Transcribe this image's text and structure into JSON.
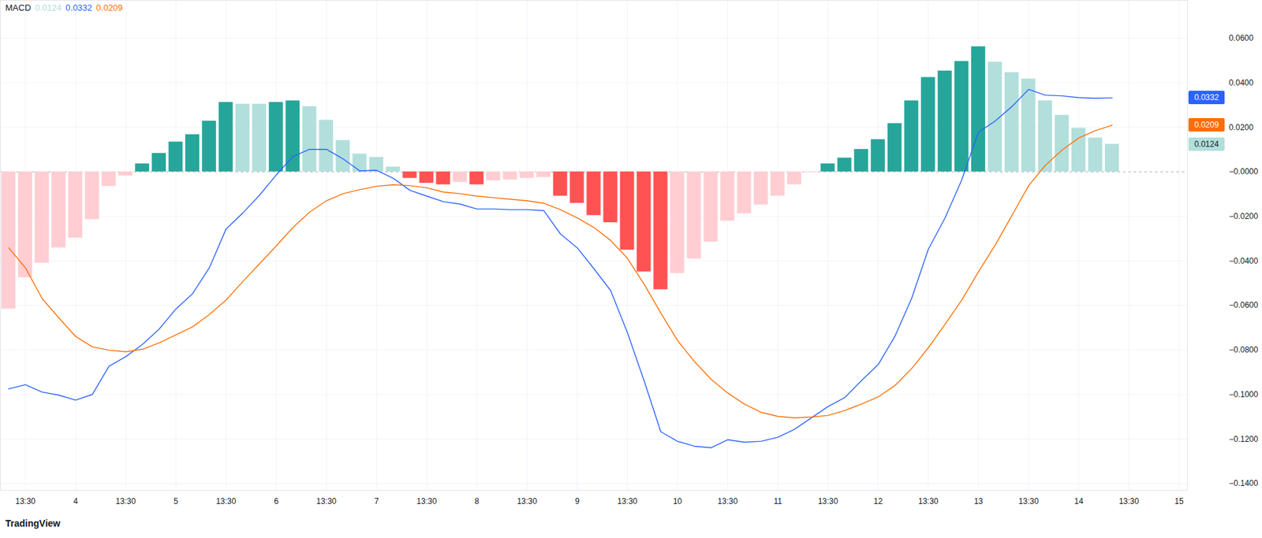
{
  "chart_data": {
    "type": "bar",
    "title": "MACD",
    "source": "TradingView",
    "grid": true,
    "categories": [
      null,
      "13:30",
      null,
      null,
      "4",
      null,
      null,
      "13:30",
      null,
      null,
      "5",
      null,
      null,
      "13:30",
      null,
      null,
      "6",
      null,
      null,
      "13:30",
      null,
      null,
      "7",
      null,
      null,
      "13:30",
      null,
      null,
      "8",
      null,
      null,
      "13:30",
      null,
      null,
      "9",
      null,
      null,
      "13:30",
      null,
      null,
      "10",
      null,
      null,
      "13:30",
      null,
      null,
      "11",
      null,
      null,
      "13:30",
      null,
      null,
      "12",
      null,
      null,
      "13:30",
      null,
      null,
      "13",
      null,
      null,
      "13:30",
      null,
      null,
      "14",
      null,
      null,
      "13:30",
      null,
      null,
      "15"
    ],
    "ylim": [
      -0.143,
      0.077
    ],
    "yticks": [
      {
        "value": 0.06,
        "label": "0.0600"
      },
      {
        "value": 0.04,
        "label": "0.0400"
      },
      {
        "value": 0.02,
        "label": "0.0200"
      },
      {
        "value": 0,
        "label": "−0.0000"
      },
      {
        "value": -0.02,
        "label": "−0.0200"
      },
      {
        "value": -0.04,
        "label": "−0.0400"
      },
      {
        "value": -0.06,
        "label": "−0.0600"
      },
      {
        "value": -0.08,
        "label": "−0.0800"
      },
      {
        "value": -0.1,
        "label": "−0.1000"
      },
      {
        "value": -0.12,
        "label": "−0.1200"
      },
      {
        "value": -0.14,
        "label": "−0.1400"
      }
    ],
    "series": [
      {
        "type": "bar",
        "last_label": "0.0124",
        "values": [
          -0.0616,
          -0.0475,
          -0.041,
          -0.0341,
          -0.0297,
          -0.0214,
          -0.0065,
          -0.0018,
          0.0036,
          0.0083,
          0.0134,
          0.0167,
          0.0228,
          0.0312,
          0.0304,
          0.0304,
          0.0312,
          0.0319,
          0.0293,
          0.0232,
          0.0141,
          0.008,
          0.0065,
          0.0022,
          -0.0029,
          -0.0051,
          -0.0058,
          -0.0047,
          -0.0058,
          -0.004,
          -0.0036,
          -0.0029,
          -0.0025,
          -0.0109,
          -0.0141,
          -0.0196,
          -0.0228,
          -0.0351,
          -0.0449,
          -0.0529,
          -0.0456,
          -0.0391,
          -0.0315,
          -0.0221,
          -0.0188,
          -0.0149,
          -0.0109,
          -0.0058,
          -0.0003,
          0.0036,
          0.0062,
          0.0101,
          0.0145,
          0.0217,
          0.0319,
          0.0424,
          0.0453,
          0.0496,
          0.0562,
          0.0493,
          0.0446,
          0.0417,
          0.0319,
          0.0254,
          0.0196,
          0.0152,
          0.0124,
          null,
          null,
          null,
          null
        ],
        "colors": [
          "#ffcdd2",
          "#ffcdd2",
          "#ffcdd2",
          "#ffcdd2",
          "#ffcdd2",
          "#ffcdd2",
          "#ffcdd2",
          "#ffcdd2",
          "#26a69a",
          "#26a69a",
          "#26a69a",
          "#26a69a",
          "#26a69a",
          "#26a69a",
          "#b2dfdb",
          "#b2dfdb",
          "#26a69a",
          "#26a69a",
          "#b2dfdb",
          "#b2dfdb",
          "#b2dfdb",
          "#b2dfdb",
          "#b2dfdb",
          "#b2dfdb",
          "#ff5252",
          "#ff5252",
          "#ff5252",
          "#ffcdd2",
          "#ff5252",
          "#ffcdd2",
          "#ffcdd2",
          "#ffcdd2",
          "#ffcdd2",
          "#ff5252",
          "#ff5252",
          "#ff5252",
          "#ff5252",
          "#ff5252",
          "#ff5252",
          "#ff5252",
          "#ffcdd2",
          "#ffcdd2",
          "#ffcdd2",
          "#ffcdd2",
          "#ffcdd2",
          "#ffcdd2",
          "#ffcdd2",
          "#ffcdd2",
          "#ffcdd2",
          "#26a69a",
          "#26a69a",
          "#26a69a",
          "#26a69a",
          "#26a69a",
          "#26a69a",
          "#26a69a",
          "#26a69a",
          "#26a69a",
          "#26a69a",
          "#b2dfdb",
          "#b2dfdb",
          "#b2dfdb",
          "#b2dfdb",
          "#b2dfdb",
          "#b2dfdb",
          "#b2dfdb",
          "#b2dfdb",
          null,
          null,
          null,
          null
        ]
      },
      {
        "type": "line",
        "color": "#2962ff",
        "last_label": "0.0332",
        "values": [
          -0.0975,
          -0.0956,
          -0.0989,
          -0.1003,
          -0.1025,
          -0.1,
          -0.0873,
          -0.083,
          -0.0775,
          -0.0706,
          -0.0616,
          -0.0547,
          -0.0431,
          -0.0257,
          -0.0185,
          -0.0105,
          -0.0014,
          0.0069,
          0.0101,
          0.0101,
          0.0058,
          0.0004,
          0.0007,
          -0.0029,
          -0.0083,
          -0.0109,
          -0.0134,
          -0.0145,
          -0.0167,
          -0.0167,
          -0.017,
          -0.017,
          -0.0174,
          -0.0279,
          -0.0341,
          -0.0435,
          -0.0533,
          -0.0721,
          -0.0938,
          -0.1167,
          -0.121,
          -0.1232,
          -0.1239,
          -0.1203,
          -0.1214,
          -0.121,
          -0.1192,
          -0.1156,
          -0.1105,
          -0.1054,
          -0.1014,
          -0.0938,
          -0.0866,
          -0.0739,
          -0.0569,
          -0.0348,
          -0.0207,
          -0.0036,
          0.0178,
          0.0228,
          0.0293,
          0.037,
          0.0344,
          0.0341,
          0.0333,
          0.033,
          0.0332,
          null,
          null,
          null,
          null
        ]
      },
      {
        "type": "line",
        "color": "#ff6d00",
        "last_label": "0.0209",
        "values": [
          -0.0341,
          -0.0431,
          -0.0569,
          -0.0656,
          -0.0739,
          -0.0786,
          -0.0801,
          -0.0808,
          -0.0797,
          -0.0768,
          -0.0732,
          -0.0696,
          -0.0641,
          -0.0576,
          -0.0493,
          -0.0413,
          -0.0333,
          -0.025,
          -0.0181,
          -0.013,
          -0.0098,
          -0.008,
          -0.0065,
          -0.0058,
          -0.0062,
          -0.0072,
          -0.0091,
          -0.0098,
          -0.0109,
          -0.0116,
          -0.0123,
          -0.013,
          -0.0141,
          -0.017,
          -0.0207,
          -0.025,
          -0.0308,
          -0.0388,
          -0.0504,
          -0.0634,
          -0.0757,
          -0.0851,
          -0.0931,
          -0.0993,
          -0.1043,
          -0.108,
          -0.1098,
          -0.1105,
          -0.1101,
          -0.1094,
          -0.1072,
          -0.1043,
          -0.1011,
          -0.096,
          -0.0884,
          -0.079,
          -0.0685,
          -0.0576,
          -0.0449,
          -0.0329,
          -0.0196,
          -0.0062,
          0.0029,
          0.0098,
          0.0152,
          0.0185,
          0.0209,
          null,
          null,
          null,
          null
        ]
      }
    ]
  }
}
